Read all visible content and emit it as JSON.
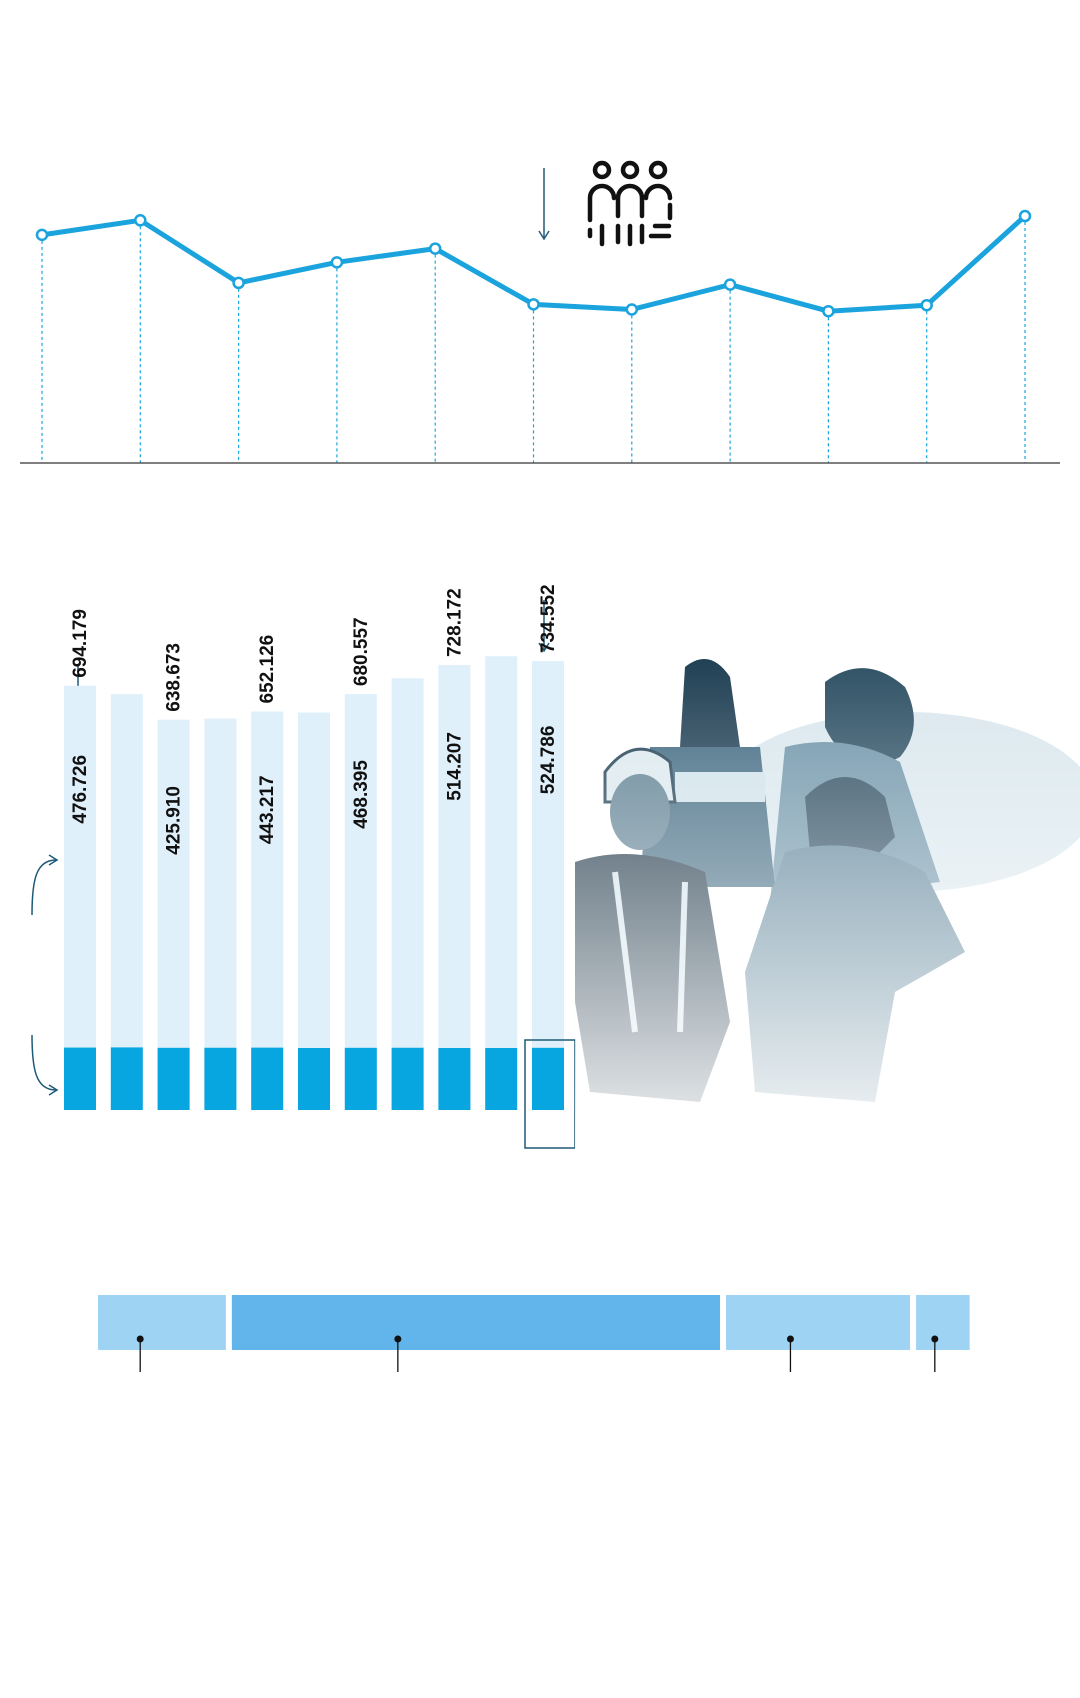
{
  "colors": {
    "line": "#1aa3dd",
    "bar_light": "#dff0fb",
    "bar_dark": "#08a6e0",
    "timeline_light": "#9ed3f4",
    "timeline_dark": "#62b5ea",
    "axis": "#555555",
    "dash": "#1aa3dd",
    "arrow": "#1f5a78"
  },
  "icons": {
    "people": "people-group-icon",
    "photo": "public-workers-collage"
  },
  "chart_data": [
    {
      "type": "line",
      "values": [
        686,
        703,
        630,
        654,
        670,
        605,
        599,
        628,
        597,
        604,
        708
      ],
      "ylim": [
        420,
        750
      ],
      "grid": false
    },
    {
      "type": "bar",
      "series": [
        {
          "values": [
            476726,
            null,
            425910,
            null,
            443217,
            null,
            468395,
            null,
            514207,
            null,
            524786
          ]
        },
        {
          "values": [
            694179,
            680500,
            638673,
            640500,
            652126,
            650500,
            680557,
            706500,
            728172,
            742500,
            734552
          ]
        }
      ],
      "labels_top": [
        "694.179",
        "",
        "638.673",
        "",
        "652.126",
        "",
        "680.557",
        "",
        "728.172",
        "",
        "734.552"
      ],
      "labels_inner": [
        "476.726",
        "",
        "425.910",
        "",
        "443.217",
        "",
        "468.395",
        "",
        "514.207",
        "",
        "524.786"
      ],
      "dark_segment": [
        0.187,
        0.19,
        0.183,
        0.184,
        0.186,
        0.18,
        0.183,
        0.184,
        0.18,
        0.18,
        0.183
      ],
      "ylim": [
        0,
        900000
      ]
    },
    {
      "type": "bar",
      "segments": [
        0.148,
        0.565,
        0.213,
        0.062
      ]
    }
  ]
}
